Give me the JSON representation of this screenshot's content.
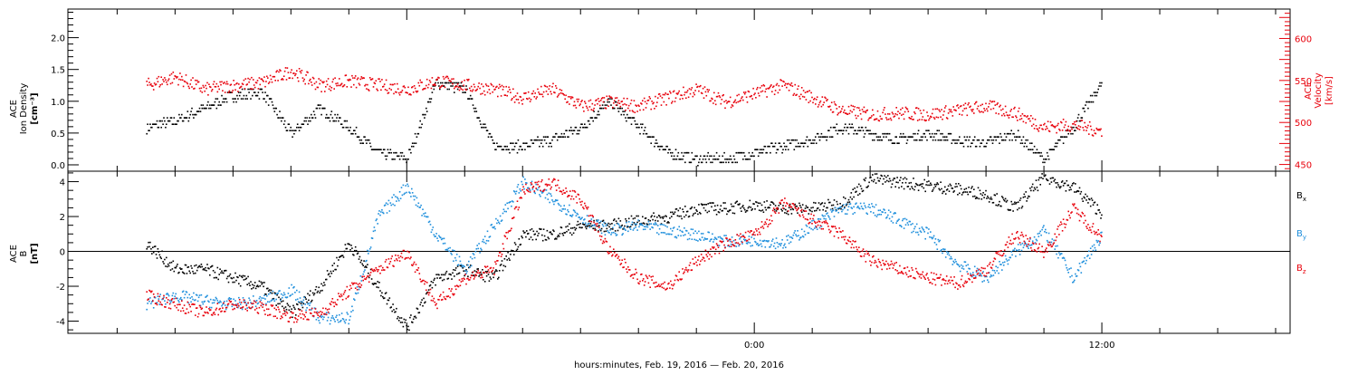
{
  "chart_data": [
    {
      "type": "scatter",
      "panel": "top",
      "ylabel_left": [
        "ACE",
        "Ion Density",
        "[cm⁻³]"
      ],
      "ylabel_right": [
        "ACE",
        "Velocity",
        "[km/s]"
      ],
      "ylim_left": [
        -0.1,
        2.45
      ],
      "ylim_right": [
        442,
        635
      ],
      "yticks_left": [
        "0.0",
        "0.5",
        "1.0",
        "1.5",
        "2.0"
      ],
      "yticks_left_values": [
        0.0,
        0.5,
        1.0,
        1.5,
        2.0
      ],
      "yticks_right": [
        "450",
        "500",
        "550",
        "600"
      ],
      "yticks_right_values": [
        450,
        500,
        550,
        600
      ],
      "colors": {
        "density": "#000000",
        "velocity": "#e8000b"
      },
      "series": [
        {
          "axis": "left",
          "hours": [
            -21,
            -20,
            -19,
            -18,
            -17,
            -16,
            -15,
            -14,
            -13,
            -12,
            -11,
            -10,
            -9,
            -8,
            -7,
            -6,
            -5,
            -4,
            -3,
            -2,
            -1,
            0,
            1,
            2,
            3,
            4,
            5,
            6,
            7,
            8,
            9,
            10,
            11,
            12
          ],
          "values": [
            0.6,
            0.7,
            0.9,
            1.1,
            1.15,
            0.5,
            0.9,
            0.6,
            0.2,
            0.1,
            1.3,
            1.2,
            0.3,
            0.3,
            0.4,
            0.6,
            1.0,
            0.6,
            0.2,
            0.1,
            0.1,
            0.2,
            0.3,
            0.4,
            0.6,
            0.5,
            0.4,
            0.5,
            0.4,
            0.35,
            0.5,
            0.1,
            0.6,
            1.3
          ]
        },
        {
          "axis": "right",
          "hours": [
            -21,
            -20,
            -19,
            -18,
            -17,
            -16,
            -15,
            -14,
            -13,
            -12,
            -11,
            -10,
            -9,
            -8,
            -7,
            -6,
            -5,
            -4,
            -3,
            -2,
            -1,
            0,
            1,
            2,
            3,
            4,
            5,
            6,
            7,
            8,
            9,
            10,
            11,
            12
          ],
          "values": [
            545,
            555,
            540,
            545,
            548,
            562,
            545,
            550,
            545,
            540,
            550,
            545,
            540,
            530,
            540,
            520,
            525,
            520,
            530,
            540,
            525,
            535,
            545,
            530,
            515,
            510,
            512,
            510,
            515,
            520,
            512,
            495,
            498,
            490
          ]
        }
      ]
    },
    {
      "type": "scatter",
      "panel": "bottom",
      "ylabel": [
        "ACE",
        "B",
        "[nT]"
      ],
      "ylim": [
        -4.7,
        4.6
      ],
      "yticks": [
        "-4",
        "-2",
        "0",
        "2",
        "4"
      ],
      "yticks_values": [
        -4,
        -2,
        0,
        2,
        4
      ],
      "legend_labels": [
        "B",
        "B",
        "B"
      ],
      "legend_subscripts": [
        "x",
        "y",
        "z"
      ],
      "legend_placement": "right",
      "colors": {
        "Bx": "#000000",
        "By": "#1f8fdc",
        "Bz": "#e8000b"
      },
      "series": [
        {
          "hours": [
            -21,
            -20,
            -19,
            -18,
            -17,
            -16,
            -15,
            -14,
            -13,
            -12,
            -11,
            -10,
            -9,
            -8,
            -7,
            -6,
            -5,
            -4,
            -3,
            -2,
            -1,
            0,
            1,
            2,
            3,
            4,
            5,
            6,
            7,
            8,
            9,
            10,
            11,
            12
          ],
          "values": [
            0.5,
            -1,
            -1,
            -1.5,
            -2,
            -3.5,
            -2,
            0.5,
            -2,
            -4.3,
            -1.5,
            -1,
            -1.5,
            1,
            1,
            1.5,
            1.5,
            1.8,
            2,
            2.5,
            2.5,
            2.7,
            2.5,
            2.5,
            2.8,
            4.2,
            4.0,
            3.8,
            3.6,
            3.3,
            2.5,
            4.3,
            3.7,
            2.2
          ]
        },
        {
          "hours": [
            -21,
            -20,
            -19,
            -18,
            -17,
            -16,
            -15,
            -14,
            -13,
            -12,
            -11,
            -10,
            -9,
            -8,
            -7,
            -6,
            -5,
            -4,
            -3,
            -2,
            -1,
            0,
            1,
            2,
            3,
            4,
            5,
            6,
            7,
            8,
            9,
            10,
            11,
            12
          ],
          "values": [
            -3,
            -2.5,
            -2.8,
            -3,
            -2.8,
            -2.2,
            -3.8,
            -3.8,
            2,
            3.8,
            1,
            -1,
            1.5,
            4,
            3,
            2,
            1.2,
            1.5,
            1.2,
            1,
            0.6,
            0.7,
            0.5,
            1.5,
            2.5,
            2.5,
            1.8,
            1,
            -0.7,
            -1.5,
            0,
            1.2,
            -1.5,
            1
          ]
        },
        {
          "hours": [
            -21,
            -20,
            -19,
            -18,
            -17,
            -16,
            -15,
            -14,
            -13,
            -12,
            -11,
            -10,
            -9,
            -8,
            -7,
            -6,
            -5,
            -4,
            -3,
            -2,
            -1,
            0,
            1,
            2,
            3,
            4,
            5,
            6,
            7,
            8,
            9,
            10,
            11,
            12
          ],
          "values": [
            -2.5,
            -3,
            -3.5,
            -3,
            -3.2,
            -3.7,
            -3.5,
            -2.2,
            -1,
            0,
            -3,
            -1.5,
            -1,
            3.5,
            4,
            3,
            0,
            -1.5,
            -2,
            -0.5,
            0.5,
            1,
            2.8,
            1.8,
            1,
            -0.5,
            -1,
            -1.5,
            -1.8,
            -1,
            1,
            0,
            2.5,
            0.8
          ]
        }
      ]
    }
  ],
  "xaxis": {
    "tick_labels": [
      "0:00",
      "12:00"
    ],
    "tick_hours": [
      0,
      12
    ],
    "xlim_hours": [
      -23.7,
      18.5
    ],
    "minor_every_hours": 2,
    "label": "hours:minutes, Feb. 19, 2016 — Feb. 20, 2016"
  }
}
